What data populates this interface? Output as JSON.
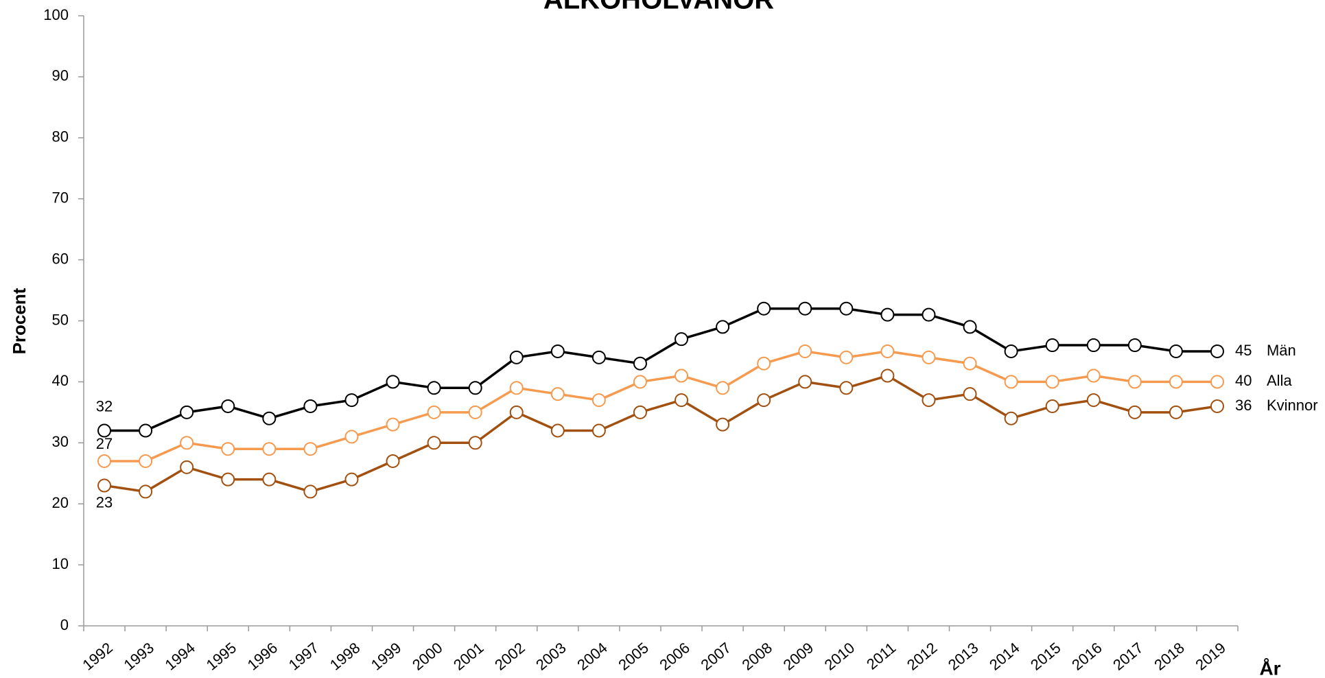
{
  "chart_data": {
    "type": "line",
    "title": "ALKOHOLVANOR",
    "y_label": "Procent",
    "x_label": "År",
    "categories": [
      "1992",
      "1993",
      "1994",
      "1995",
      "1996",
      "1997",
      "1998",
      "1999",
      "2000",
      "2001",
      "2002",
      "2003",
      "2004",
      "2005",
      "2006",
      "2007",
      "2008",
      "2009",
      "2010",
      "2011",
      "2012",
      "2013",
      "2014",
      "2015",
      "2016",
      "2017",
      "2018",
      "2019"
    ],
    "series": [
      {
        "name": "Män",
        "color": "#000000",
        "values": [
          32,
          32,
          35,
          36,
          34,
          36,
          37,
          40,
          39,
          39,
          44,
          45,
          44,
          43,
          47,
          49,
          52,
          52,
          52,
          51,
          51,
          49,
          45,
          46,
          46,
          46,
          45,
          45
        ]
      },
      {
        "name": "Alla",
        "color": "#f59a4e",
        "values": [
          27,
          27,
          30,
          29,
          29,
          29,
          31,
          33,
          35,
          35,
          39,
          38,
          37,
          40,
          41,
          39,
          43,
          45,
          44,
          45,
          44,
          43,
          40,
          40,
          41,
          40,
          40,
          40
        ]
      },
      {
        "name": "Kvinnor",
        "color": "#a2500f",
        "values": [
          23,
          22,
          26,
          24,
          24,
          22,
          24,
          27,
          30,
          30,
          35,
          32,
          32,
          35,
          37,
          33,
          37,
          40,
          39,
          41,
          37,
          38,
          34,
          36,
          37,
          35,
          35,
          36
        ]
      }
    ],
    "ylim": [
      0,
      100
    ],
    "yticks": [
      0,
      10,
      20,
      30,
      40,
      50,
      60,
      70,
      80,
      90,
      100
    ]
  }
}
